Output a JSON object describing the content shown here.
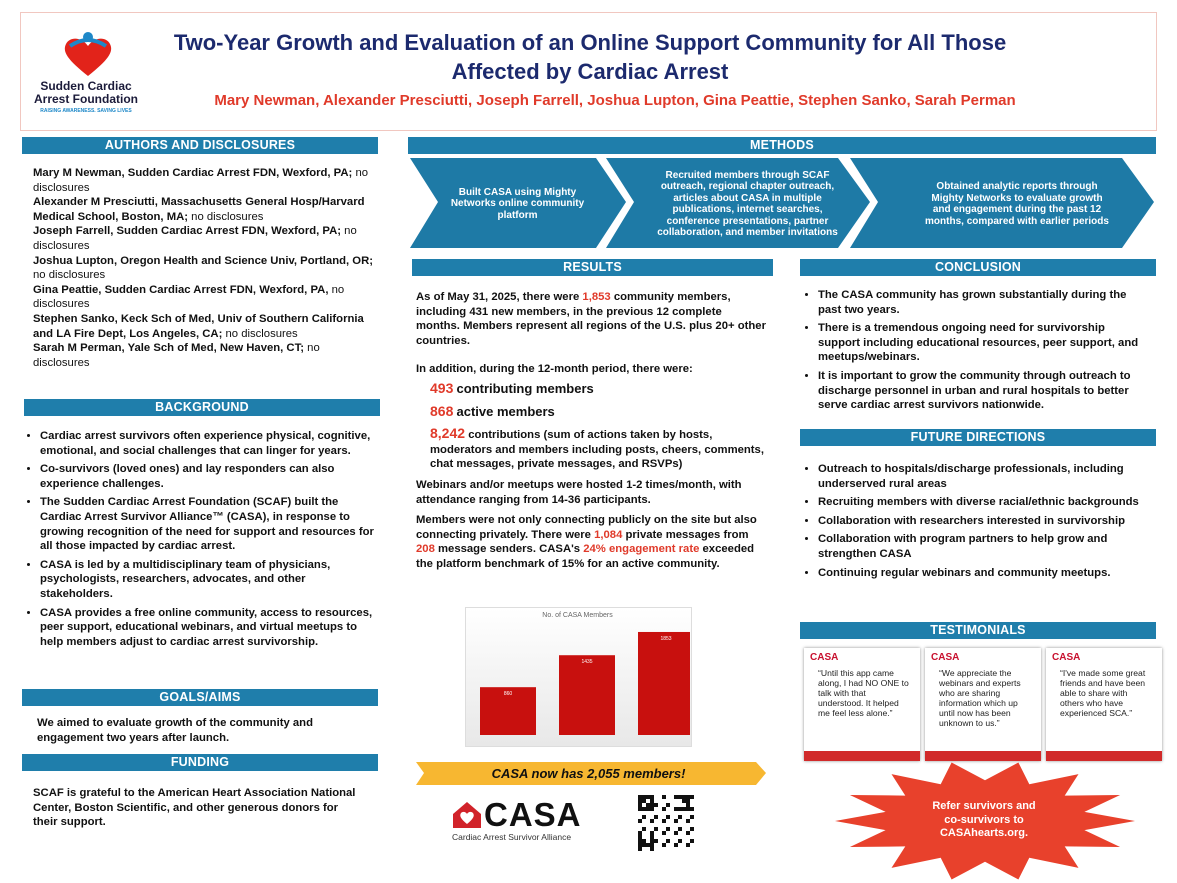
{
  "header": {
    "logo_name": "Sudden Cardiac Arrest Foundation",
    "logo_tagline": "RAISING AWARENESS. SAVING LIVES",
    "title": "Two-Year Growth and Evaluation of an Online Support Community for All Those Affected by Cardiac Arrest",
    "authors": "Mary Newman, Alexander Presciutti, Joseph Farrell, Joshua Lupton, Gina Peattie, Stephen Sanko, Sarah Perman"
  },
  "authors_disclosures": {
    "heading": "AUTHORS AND DISCLOSURES",
    "entries": [
      {
        "name": "Mary M Newman, Sudden Cardiac Arrest FDN, Wexford, PA;",
        "disclosure": "no disclosures"
      },
      {
        "name": "Alexander M Presciutti, Massachusetts General Hosp/Harvard Medical School, Boston, MA;",
        "disclosure": "no disclosures"
      },
      {
        "name": "Joseph Farrell, Sudden Cardiac Arrest FDN, Wexford, PA;",
        "disclosure": "no disclosures"
      },
      {
        "name": "Joshua Lupton, Oregon Health and Science Univ, Portland, OR;",
        "disclosure": "no disclosures"
      },
      {
        "name": "Gina Peattie, Sudden Cardiac Arrest FDN, Wexford, PA,",
        "disclosure": "no disclosures"
      },
      {
        "name": "Stephen Sanko, Keck Sch of Med, Univ of Southern California and LA Fire Dept, Los Angeles, CA;",
        "disclosure": "no disclosures"
      },
      {
        "name": "Sarah M Perman, Yale Sch of Med, New Haven, CT;",
        "disclosure": "no disclosures"
      }
    ]
  },
  "background": {
    "heading": "BACKGROUND",
    "bullets": [
      "Cardiac arrest survivors often experience physical, cognitive, emotional, and social challenges that can linger for years.",
      "Co-survivors (loved ones) and lay responders can also experience challenges.",
      "The Sudden Cardiac Arrest Foundation (SCAF) built the Cardiac Arrest Survivor Alliance™ (CASA), in response to growing recognition of the need for support and resources for all those impacted by cardiac arrest.",
      "CASA is led by a multidisciplinary team of physicians, psychologists, researchers, advocates, and other stakeholders.",
      "CASA provides a free online community, access to resources, peer support, educational webinars, and virtual meetups to help members adjust to cardiac arrest survivorship."
    ]
  },
  "goals": {
    "heading": "GOALS/AIMS",
    "text": "We aimed to evaluate growth of the community and engagement two years after launch."
  },
  "funding": {
    "heading": "FUNDING",
    "text": "SCAF is grateful to the American Heart Association National Center, Boston Scientific, and other generous donors for their support."
  },
  "methods": {
    "heading": "METHODS",
    "steps": [
      "Built CASA using Mighty Networks online community platform",
      "Recruited members through SCAF outreach, regional chapter outreach, articles about CASA in multiple publications, internet searches, conference presentations, partner collaboration, and member invitations",
      "Obtained analytic reports through Mighty Networks to evaluate growth and engagement during the past 12 months, compared with earlier periods"
    ]
  },
  "results": {
    "heading": "RESULTS",
    "intro": [
      "As of May 31, 2025, there were ",
      "1,853",
      " community members, including 431 new members, in the previous 12 complete months. Members represent all regions of the U.S. plus 20+ other countries."
    ],
    "lead": "In addition, during the 12-month period, there were:",
    "stats": [
      {
        "value": "493",
        "text": "contributing members"
      },
      {
        "value": "868",
        "text": "active members"
      },
      {
        "value": "8,242",
        "text": "contributions (sum of actions taken by hosts, moderators and members including posts, cheers, comments, chat messages, private messages, and RSVPs)"
      }
    ],
    "webinars": "Webinars and/or meetups were hosted 1-2 times/month, with attendance ranging from 14-36 participants.",
    "private": [
      "Members were not only connecting publicly on the site but also connecting privately. There were ",
      "1,084",
      " private messages from ",
      "208",
      " message senders. CASA's ",
      "24% engagement rate",
      " exceeded the platform benchmark of 15% for an active community."
    ],
    "chart": {
      "type": "bar",
      "title": "No. of CASA Members",
      "categories": [
        null,
        null,
        null
      ],
      "values": [
        860,
        1435,
        1853
      ],
      "color": "#c8100e"
    },
    "banner": "CASA now has 2,055 members!"
  },
  "casa_logo": {
    "name": "CASA",
    "subtitle": "Cardiac Arrest Survivor Alliance"
  },
  "conclusion": {
    "heading": "CONCLUSION",
    "bullets": [
      "The CASA community has grown substantially during the past two years.",
      "There is a tremendous ongoing need for survivorship support including educational resources, peer support, and meetups/webinars.",
      "It is important to grow the community through outreach to discharge personnel in urban and rural hospitals to better serve cardiac arrest survivors nationwide."
    ]
  },
  "future_directions": {
    "heading": "FUTURE DIRECTIONS",
    "bullets": [
      "Outreach to hospitals/discharge professionals, including underserved rural areas",
      "Recruiting members with diverse racial/ethnic backgrounds",
      "Collaboration with researchers interested in survivorship",
      "Collaboration with program partners to help grow and strengthen CASA",
      "Continuing regular webinars and community meetups."
    ]
  },
  "testimonials": {
    "heading": "TESTIMONIALS",
    "cards": [
      {
        "logo": "CASA",
        "quote": "“Until this app came along, I had NO ONE to talk with that understood. It helped me feel less alone.”"
      },
      {
        "logo": "CASA",
        "quote": "“We appreciate the webinars and experts who are sharing information which up until now has been unknown to us.”"
      },
      {
        "logo": "CASA",
        "quote": "“I've made some great friends and have been able to share with others who have experienced SCA.”"
      }
    ]
  },
  "callout": "Refer survivors and co-survivors to CASAhearts.org."
}
